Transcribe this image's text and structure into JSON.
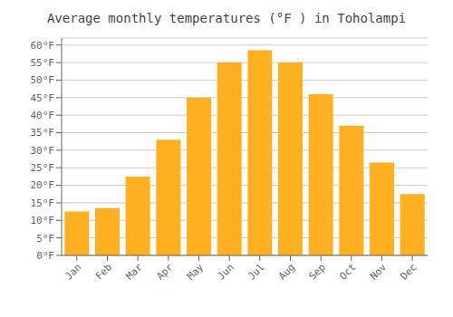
{
  "chart_data": {
    "type": "bar",
    "title": "Average monthly temperatures (°F ) in Toholampi",
    "categories": [
      "Jan",
      "Feb",
      "Mar",
      "Apr",
      "May",
      "Jun",
      "Jul",
      "Aug",
      "Sep",
      "Oct",
      "Nov",
      "Dec"
    ],
    "values": [
      12.5,
      13.5,
      22.5,
      33.0,
      45.0,
      55.0,
      58.5,
      55.0,
      46.0,
      37.0,
      26.5,
      17.5
    ],
    "color": "#FFB020",
    "ylim": [
      0,
      62
    ],
    "yticks": [
      {
        "value": 0,
        "label": "0°F"
      },
      {
        "value": 5,
        "label": "5°F"
      },
      {
        "value": 10,
        "label": "10°F"
      },
      {
        "value": 15,
        "label": "15°F"
      },
      {
        "value": 20,
        "label": "20°F"
      },
      {
        "value": 25,
        "label": "25°F"
      },
      {
        "value": 30,
        "label": "30°F"
      },
      {
        "value": 35,
        "label": "35°F"
      },
      {
        "value": 40,
        "label": "40°F"
      },
      {
        "value": 45,
        "label": "45°F"
      },
      {
        "value": 50,
        "label": "50°F"
      },
      {
        "value": 55,
        "label": "55°F"
      },
      {
        "value": 60,
        "label": "60°F"
      }
    ],
    "grid": true
  }
}
